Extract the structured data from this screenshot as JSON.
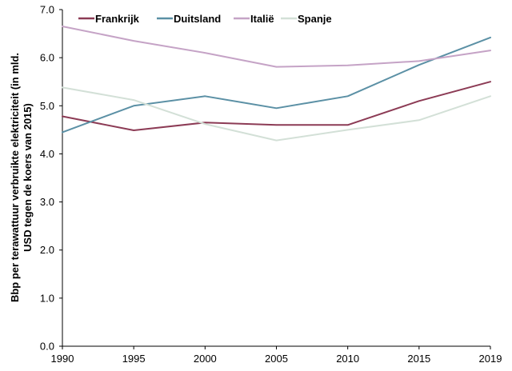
{
  "chart_data": {
    "type": "line",
    "title": "",
    "xlabel": "",
    "ylabel_lines": [
      "Bbp per terawattuur verbruikte elektriciteit (in mld.",
      "USD tegen de koers van 2015)"
    ],
    "x": [
      "1990",
      "1995",
      "2000",
      "2005",
      "2010",
      "2015",
      "2019"
    ],
    "y_ticks": [
      "0.0",
      "1.0",
      "2.0",
      "3.0",
      "4.0",
      "5.0",
      "6.0",
      "7.0"
    ],
    "ylim": [
      0,
      7
    ],
    "grid": false,
    "legend_position": "top",
    "series": [
      {
        "name": "Frankrijk",
        "color": "#8c3b55",
        "values": [
          4.78,
          4.49,
          4.65,
          4.6,
          4.6,
          5.1,
          5.5
        ]
      },
      {
        "name": "Duitsland",
        "color": "#5b90a5",
        "values": [
          4.45,
          5.0,
          5.2,
          4.95,
          5.2,
          5.85,
          6.42
        ]
      },
      {
        "name": "Italië",
        "color": "#c5a3c6",
        "values": [
          6.65,
          6.35,
          6.1,
          5.81,
          5.84,
          5.93,
          6.15
        ]
      },
      {
        "name": "Spanje",
        "color": "#d3e0d7",
        "values": [
          5.38,
          5.12,
          4.62,
          4.28,
          4.5,
          4.7,
          5.2
        ]
      }
    ]
  }
}
